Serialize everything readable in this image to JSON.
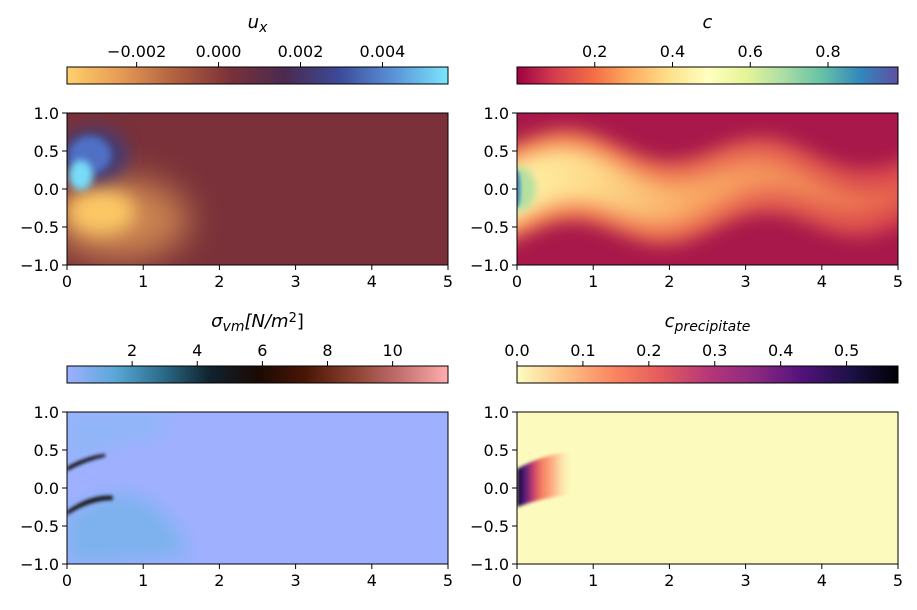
{
  "chart_data": [
    {
      "type": "heatmap",
      "title_parts": [
        {
          "text": "u",
          "style": "normal",
          "italic": true
        },
        {
          "text": "x",
          "style": "sub",
          "italic": true
        }
      ],
      "xlim": [
        0,
        5
      ],
      "ylim": [
        -1,
        1
      ],
      "xticks": [
        0,
        1,
        2,
        3,
        4,
        5
      ],
      "xtick_labels": [
        "0",
        "1",
        "2",
        "3",
        "4",
        "5"
      ],
      "yticks": [
        -1,
        -0.5,
        0,
        0.5,
        1
      ],
      "ytick_labels": [
        "−1.0",
        "−0.5",
        "0.0",
        "0.5",
        "1.0"
      ],
      "colorbar": {
        "range": [
          -0.0037,
          0.0056
        ],
        "ticks": [
          -0.002,
          0.0,
          0.002,
          0.004
        ],
        "tick_labels": [
          "−0.002",
          "0.000",
          "0.002",
          "0.004"
        ],
        "colors": [
          "#ffd06c",
          "#e49a55",
          "#b0603f",
          "#7a3139",
          "#4a2a50",
          "#3c4a98",
          "#5a92d8",
          "#7ce6fc"
        ],
        "placement": "top"
      }
    },
    {
      "type": "heatmap",
      "title_parts": [
        {
          "text": "c",
          "style": "normal",
          "italic": true
        }
      ],
      "xlim": [
        0,
        5
      ],
      "ylim": [
        -1,
        1
      ],
      "xticks": [
        0,
        1,
        2,
        3,
        4,
        5
      ],
      "xtick_labels": [
        "0",
        "1",
        "2",
        "3",
        "4",
        "5"
      ],
      "yticks": [
        -1,
        -0.5,
        0,
        0.5,
        1
      ],
      "ytick_labels": [
        "−1.0",
        "−0.5",
        "0.0",
        "0.5",
        "1.0"
      ],
      "colorbar": {
        "range": [
          0.0,
          0.98
        ],
        "ticks": [
          0.2,
          0.4,
          0.6,
          0.8
        ],
        "tick_labels": [
          "0.2",
          "0.4",
          "0.6",
          "0.8"
        ],
        "colors": [
          "#9e0142",
          "#d53e4f",
          "#f46d43",
          "#fdae61",
          "#fee08b",
          "#ffffbf",
          "#e6f598",
          "#abdda4",
          "#66c2a5",
          "#3288bd",
          "#5e4fa2"
        ],
        "placement": "top"
      }
    },
    {
      "type": "heatmap",
      "title_parts": [
        {
          "text": "σ",
          "style": "normal",
          "italic": true
        },
        {
          "text": "vm",
          "style": "sub",
          "italic": true
        },
        {
          "text": "[N/m",
          "style": "normal",
          "italic": true
        },
        {
          "text": "2",
          "style": "sup",
          "italic": false
        },
        {
          "text": "]",
          "style": "normal",
          "italic": false
        }
      ],
      "xlim": [
        0,
        5
      ],
      "ylim": [
        -1,
        1
      ],
      "xticks": [
        0,
        1,
        2,
        3,
        4,
        5
      ],
      "xtick_labels": [
        "0",
        "1",
        "2",
        "3",
        "4",
        "5"
      ],
      "yticks": [
        -1,
        -0.5,
        0,
        0.5,
        1
      ],
      "ytick_labels": [
        "−1.0",
        "−0.5",
        "0.0",
        "0.5",
        "1.0"
      ],
      "colorbar": {
        "range": [
          0.0,
          11.7
        ],
        "ticks": [
          2,
          4,
          6,
          8,
          10
        ],
        "tick_labels": [
          "2",
          "4",
          "6",
          "8",
          "10"
        ],
        "colors": [
          "#9eb0ff",
          "#5aa8d8",
          "#2b6c8a",
          "#10222e",
          "#1a0a03",
          "#4a1505",
          "#8a4030",
          "#c47070",
          "#ffadad"
        ],
        "placement": "top"
      }
    },
    {
      "type": "heatmap",
      "title_parts": [
        {
          "text": "c",
          "style": "normal",
          "italic": true
        },
        {
          "text": "precipitate",
          "style": "sub",
          "italic": true
        }
      ],
      "xlim": [
        0,
        5
      ],
      "ylim": [
        -1,
        1
      ],
      "xticks": [
        0,
        1,
        2,
        3,
        4,
        5
      ],
      "xtick_labels": [
        "0",
        "1",
        "2",
        "3",
        "4",
        "5"
      ],
      "yticks": [
        -1,
        -0.5,
        0,
        0.5,
        1
      ],
      "ytick_labels": [
        "−1.0",
        "−0.5",
        "0.0",
        "0.5",
        "1.0"
      ],
      "colorbar": {
        "range": [
          0.0,
          0.578
        ],
        "ticks": [
          0.0,
          0.1,
          0.2,
          0.3,
          0.4,
          0.5
        ],
        "tick_labels": [
          "0.0",
          "0.1",
          "0.2",
          "0.3",
          "0.4",
          "0.5"
        ],
        "colors": [
          "#fcfdbf",
          "#fec287",
          "#fb8761",
          "#e55c5c",
          "#b73779",
          "#8c2981",
          "#51127c",
          "#1d1147",
          "#000004"
        ],
        "placement": "top"
      }
    }
  ]
}
